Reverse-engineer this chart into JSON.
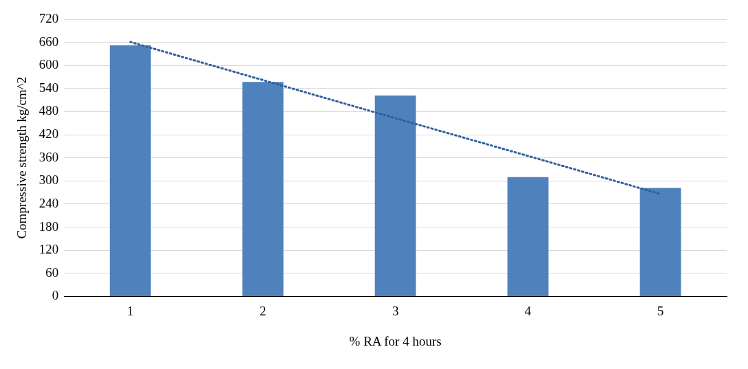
{
  "chart_data": {
    "type": "bar",
    "xlabel": "% RA for 4 hours",
    "ylabel": "Compressive strength kg/cm^2",
    "categories": [
      "1",
      "2",
      "3",
      "4",
      "5"
    ],
    "series": [
      {
        "color": "#4f81bd",
        "values": [
          652,
          557,
          522,
          310,
          282
        ]
      },
      {
        "type": "line",
        "color": "#2f5f9e",
        "line_style": "dotted",
        "marker": "none",
        "values": [
          661,
          562,
          463,
          365,
          266
        ]
      }
    ],
    "ylim": [
      0,
      720
    ],
    "yticks": [
      0,
      60,
      120,
      180,
      240,
      300,
      360,
      420,
      480,
      540,
      600,
      660,
      720
    ],
    "grid": "y",
    "legend": false
  }
}
